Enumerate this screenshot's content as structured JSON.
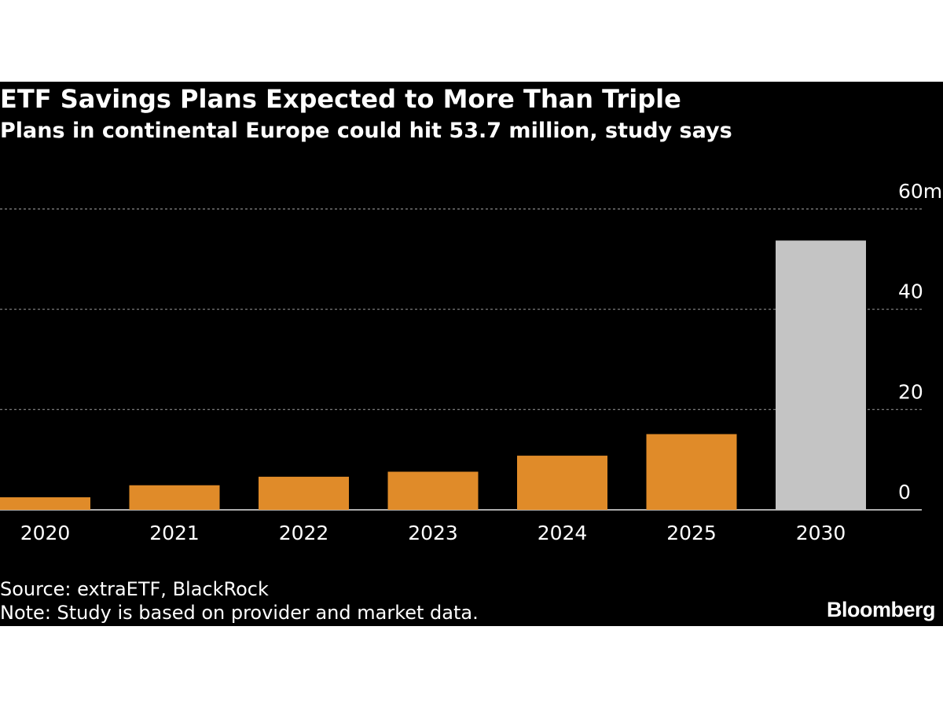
{
  "header": {
    "title": "ETF Savings Plans Expected to More Than Triple",
    "subtitle": "Plans in continental Europe could hit 53.7 million, study says"
  },
  "footer": {
    "source": "Source: extraETF, BlackRock",
    "note": "Note: Study is based on provider and market data.",
    "brand": "Bloomberg"
  },
  "colors": {
    "background": "#000000",
    "actual_bar": "#e08b29",
    "projected_bar": "#c4c4c4",
    "gridline": "#8a8a8a",
    "text": "#ffffff"
  },
  "chart_data": {
    "type": "bar",
    "title": "ETF Savings Plans Expected to More Than Triple",
    "subtitle": "Plans in continental Europe could hit 53.7 million, study says",
    "categories": [
      "2020",
      "2021",
      "2022",
      "2023",
      "2024",
      "2025",
      "2030"
    ],
    "values": [
      2.5,
      4.9,
      6.6,
      7.6,
      10.8,
      15.1,
      53.7
    ],
    "projected": [
      false,
      false,
      false,
      false,
      false,
      false,
      true
    ],
    "yticks": [
      0,
      20,
      40,
      60
    ],
    "ytick_labels": [
      "0",
      "20",
      "40",
      "60m"
    ],
    "ylim": [
      0,
      60
    ],
    "y_axis_side": "right",
    "grid": true,
    "xlabel": "",
    "ylabel": ""
  }
}
